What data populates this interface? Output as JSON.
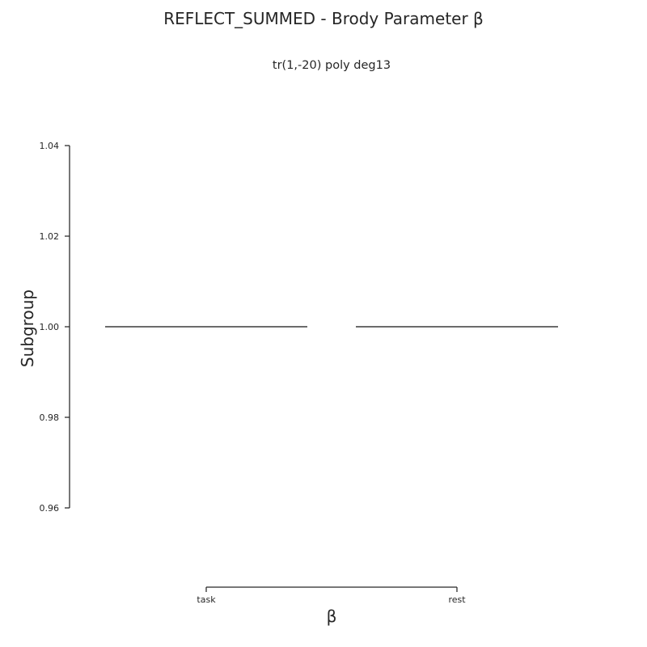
{
  "title": "REFLECT_SUMMED - Brody Parameter β",
  "subtitle": "tr(1,-20) poly deg13",
  "colors": {
    "axis": "#262626",
    "line": "#3a3a3a",
    "background": "#ffffff"
  },
  "chart_data": {
    "type": "box",
    "orientation": "horizontal",
    "xlabel": "β",
    "ylabel": "Subgroup",
    "categories": [
      "task",
      "rest"
    ],
    "ylim": [
      0.96,
      1.04
    ],
    "yticks": [
      0.96,
      0.98,
      1.0,
      1.02,
      1.04
    ],
    "ytick_labels": [
      "0.96",
      "0.98",
      "1.00",
      "1.02",
      "1.04"
    ],
    "series": [
      {
        "category": "task",
        "value": 1.0
      },
      {
        "category": "rest",
        "value": 1.0
      }
    ],
    "grid": false,
    "legend": "none"
  }
}
